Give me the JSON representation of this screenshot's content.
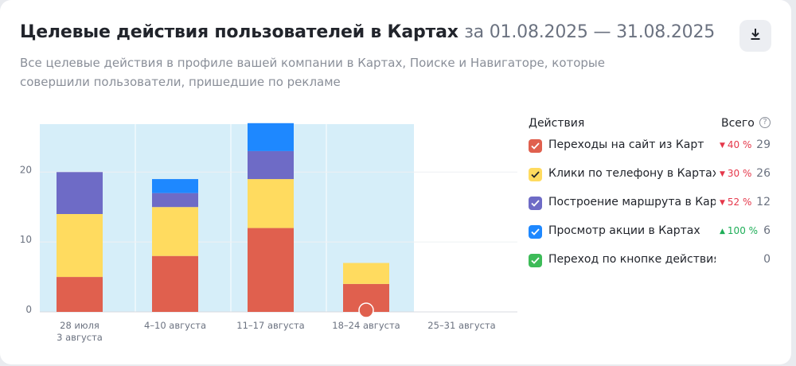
{
  "header": {
    "title": "Целевые действия пользователей в Картах",
    "period": "за 01.08.2025 — 31.08.2025",
    "subtitle": "Все целевые действия в профиле вашей компании в Картах, Поиске и Навигаторе, которые совершили пользователи, пришедшие по рекламе",
    "download_icon": "download-icon"
  },
  "legend": {
    "actions_label": "Действия",
    "total_label": "Всего",
    "help_icon": "help-icon",
    "help_glyph": "?",
    "items": [
      {
        "name": "Переходы на сайт из Карт",
        "delta": "40 %",
        "trend": "down",
        "total": "29",
        "color": "#e0604e"
      },
      {
        "name": "Клики по телефону в Картах",
        "delta": "30 %",
        "trend": "down",
        "total": "26",
        "color": "#ffdb5f"
      },
      {
        "name": "Построение маршрута в Картах",
        "delta": "52 %",
        "trend": "down",
        "total": "12",
        "color": "#6e6bc6"
      },
      {
        "name": "Просмотр акции в Картах",
        "delta": "100 %",
        "trend": "up",
        "total": "6",
        "color": "#1e88ff"
      },
      {
        "name": "Переход по кнопке действия из Карт",
        "delta": "",
        "trend": "",
        "total": "0",
        "color": "#3dbb58"
      }
    ]
  },
  "chart_data": {
    "type": "bar",
    "stacked": true,
    "categories": [
      [
        "28 июля",
        "3 августа"
      ],
      [
        "4–10 августа"
      ],
      [
        "11–17 августа"
      ],
      [
        "18–24 августа"
      ],
      [
        "25–31 августа"
      ]
    ],
    "series": [
      {
        "name": "Переходы на сайт из Карт",
        "color": "#e0604e",
        "values": [
          5,
          8,
          12,
          4,
          0
        ]
      },
      {
        "name": "Клики по телефону в Картах",
        "color": "#ffdb5f",
        "values": [
          9,
          7,
          7,
          3,
          0
        ]
      },
      {
        "name": "Построение маршрута в Картах",
        "color": "#6e6bc6",
        "values": [
          6,
          2,
          4,
          0,
          0
        ]
      },
      {
        "name": "Просмотр акции в Картах",
        "color": "#1e88ff",
        "values": [
          0,
          2,
          4,
          0,
          0
        ]
      },
      {
        "name": "Переход по кнопке действия из Карт",
        "color": "#3dbb58",
        "values": [
          0,
          0,
          0,
          0,
          0
        ]
      }
    ],
    "ylim": [
      0,
      28
    ],
    "yticks": [
      0,
      10,
      20
    ],
    "highlight_range": [
      0,
      3
    ],
    "highlight_color": "#d6eef9",
    "grid": true
  }
}
